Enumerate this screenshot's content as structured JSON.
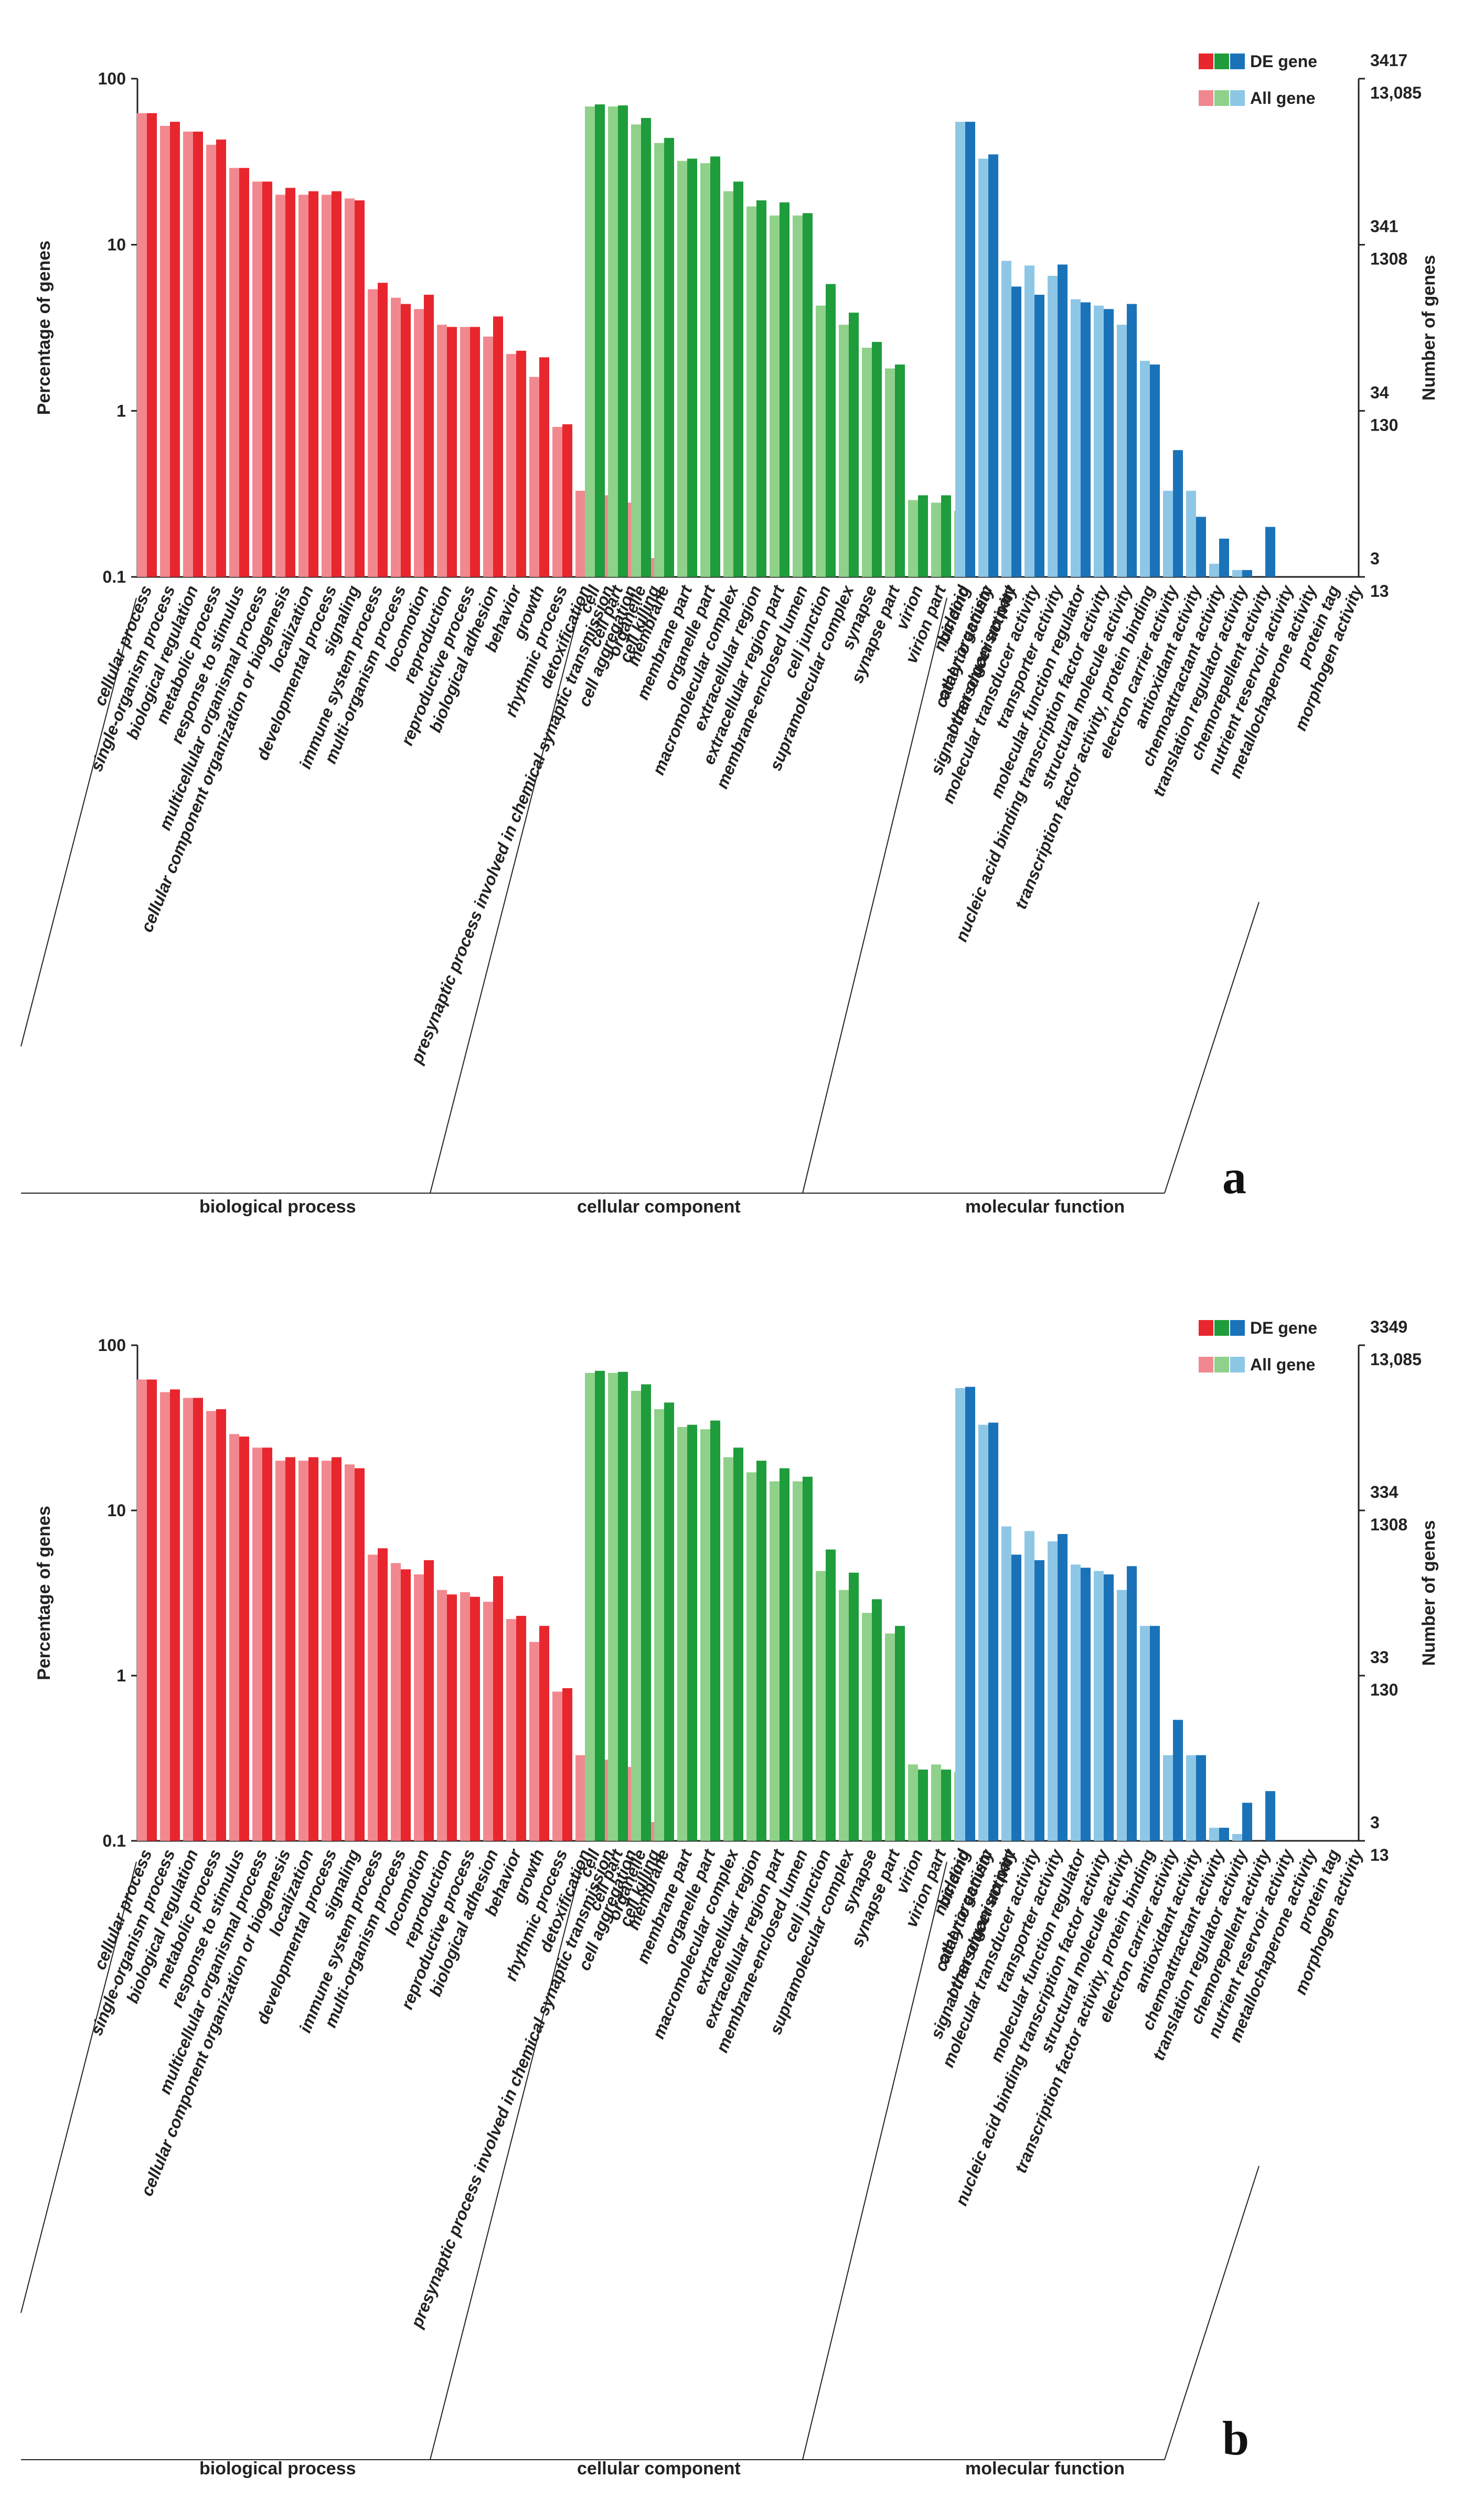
{
  "colors": {
    "bp_de": "#e8262d",
    "bp_all": "#f2888f",
    "cc_de": "#1f9c3c",
    "cc_all": "#8fd18a",
    "mf_de": "#1a73b8",
    "mf_all": "#8ec7e6"
  },
  "chart_data": [
    {
      "panel": "a",
      "type": "bar",
      "yscale": "log",
      "ylabel": "Percentage of genes",
      "y2label": "Number of genes",
      "yticks": [
        "100",
        "10",
        "1",
        "0.1"
      ],
      "ylim": [
        0.1,
        100
      ],
      "right_de_labels": [
        "3417",
        "341",
        "34",
        "3"
      ],
      "right_all_labels": [
        "13,085",
        "1308",
        "130",
        "13"
      ],
      "legend": [
        "DE gene",
        "All gene"
      ],
      "groups": [
        {
          "name": "biological process",
          "key": "bp",
          "categories": [
            "cellular process",
            "single-organism process",
            "biological regulation",
            "metabolic process",
            "response to stimulus",
            "multicellular organismal process",
            "cellular component organization or biogenesis",
            "localization",
            "developmental process",
            "signaling",
            "immune system process",
            "multi-organism process",
            "locomotion",
            "reproduction",
            "reproductive process",
            "biological adhesion",
            "behavior",
            "growth",
            "rhythmic process",
            "detoxification",
            "presynaptic process involved in chemical synaptic transmission",
            "cell aggregation",
            "cell killing"
          ],
          "series": [
            {
              "name": "All gene",
              "values": [
                62,
                52,
                48,
                40,
                29,
                24,
                20,
                20,
                20,
                19,
                5.4,
                4.8,
                4.1,
                3.3,
                3.2,
                2.8,
                2.2,
                1.6,
                0.8,
                0.33,
                0.31,
                0.28,
                0.13
              ]
            },
            {
              "name": "DE gene",
              "values": [
                62,
                55,
                48,
                43,
                29,
                24,
                22,
                21,
                21,
                18.5,
                5.9,
                4.4,
                5.0,
                3.2,
                3.2,
                3.7,
                2.3,
                2.1,
                0.83,
                0.23,
                0.22,
                0.23,
                0.14
              ]
            }
          ]
        },
        {
          "name": "cellular component",
          "key": "cc",
          "categories": [
            "cell",
            "cell part",
            "organelle",
            "membrane",
            "membrane part",
            "organelle part",
            "macromolecular complex",
            "extracellular region",
            "extracellular region part",
            "membrane-enclosed lumen",
            "cell junction",
            "supramolecular complex",
            "synapse",
            "synapse part",
            "virion",
            "virion part",
            "nucleoid",
            "other organism",
            "other organism part"
          ],
          "series": [
            {
              "name": "All gene",
              "values": [
                68,
                68,
                53,
                41,
                32,
                31,
                21,
                17,
                15,
                15,
                4.3,
                3.3,
                2.4,
                1.8,
                0.29,
                0.28,
                0.25,
                0,
                0
              ]
            },
            {
              "name": "DE gene",
              "values": [
                70,
                69,
                58,
                44,
                33,
                34,
                24,
                18.5,
                18,
                15.5,
                5.8,
                3.9,
                2.6,
                1.9,
                0.31,
                0.31,
                0.26,
                0,
                0
              ]
            }
          ]
        },
        {
          "name": "molecular function",
          "key": "mf",
          "categories": [
            "binding",
            "catalytic activity",
            "signal transducer activity",
            "molecular transducer activity",
            "transporter activity",
            "molecular function regulator",
            "nucleic acid binding transcription factor activity",
            "structural molecule activity",
            "transcription factor activity, protein binding",
            "electron carrier activity",
            "antioxidant activity",
            "chemoattractant activity",
            "translation regulator activity",
            "chemorepellent activity",
            "nutrient reservoir activity",
            "metallochaperone activity",
            "protein tag",
            "morphogen activity"
          ],
          "series": [
            {
              "name": "All gene",
              "values": [
                55,
                33,
                8.0,
                7.5,
                6.5,
                4.7,
                4.3,
                3.3,
                2.0,
                0.33,
                0.33,
                0.12,
                0.11,
                0,
                0,
                0,
                0,
                0
              ]
            },
            {
              "name": "DE gene",
              "values": [
                55,
                35,
                5.6,
                5.0,
                7.6,
                4.5,
                4.1,
                4.4,
                1.9,
                0.58,
                0.23,
                0.17,
                0.11,
                0.2,
                0,
                0,
                0,
                0
              ]
            }
          ]
        }
      ]
    },
    {
      "panel": "b",
      "type": "bar",
      "yscale": "log",
      "ylabel": "Percentage of genes",
      "y2label": "Number of genes",
      "yticks": [
        "100",
        "10",
        "1",
        "0.1"
      ],
      "ylim": [
        0.1,
        100
      ],
      "right_de_labels": [
        "3349",
        "334",
        "33",
        "3"
      ],
      "right_all_labels": [
        "13,085",
        "1308",
        "130",
        "13"
      ],
      "legend": [
        "DE gene",
        "All gene"
      ],
      "groups": [
        {
          "name": "biological process",
          "key": "bp",
          "categories": [
            "cellular process",
            "single-organism process",
            "biological regulation",
            "metabolic process",
            "response to stimulus",
            "multicellular organismal process",
            "cellular component organization or biogenesis",
            "localization",
            "developmental process",
            "signaling",
            "immune system process",
            "multi-organism process",
            "locomotion",
            "reproduction",
            "reproductive process",
            "biological adhesion",
            "behavior",
            "growth",
            "rhythmic process",
            "detoxification",
            "presynaptic process involved in chemical synaptic transmission",
            "cell aggregation",
            "cell killing"
          ],
          "series": [
            {
              "name": "All gene",
              "values": [
                62,
                52,
                48,
                40,
                29,
                24,
                20,
                20,
                20,
                19,
                5.4,
                4.8,
                4.1,
                3.3,
                3.2,
                2.8,
                2.2,
                1.6,
                0.8,
                0.33,
                0.31,
                0.28,
                0.13
              ]
            },
            {
              "name": "DE gene",
              "values": [
                62,
                54,
                48,
                41,
                28,
                24,
                21,
                21,
                21,
                18,
                5.9,
                4.4,
                5.0,
                3.1,
                3.0,
                4.0,
                2.3,
                2.0,
                0.84,
                0.33,
                0.33,
                0.21,
                0.18
              ]
            }
          ]
        },
        {
          "name": "cellular component",
          "key": "cc",
          "categories": [
            "cell",
            "cell part",
            "organelle",
            "membrane",
            "membrane part",
            "organelle part",
            "macromolecular complex",
            "extracellular region",
            "extracellular region part",
            "membrane-enclosed lumen",
            "cell junction",
            "supramolecular complex",
            "synapse",
            "synapse part",
            "virion",
            "virion part",
            "nucleoid",
            "other organism",
            "other organism part"
          ],
          "series": [
            {
              "name": "All gene",
              "values": [
                68,
                68,
                53,
                41,
                32,
                31,
                21,
                17,
                15,
                15,
                4.3,
                3.3,
                2.4,
                1.8,
                0.29,
                0.29,
                0.26,
                0,
                0
              ]
            },
            {
              "name": "DE gene",
              "values": [
                70,
                69,
                58,
                45,
                33,
                35,
                24,
                20,
                18,
                16,
                5.8,
                4.2,
                2.9,
                2.0,
                0.27,
                0.27,
                0.24,
                0,
                0
              ]
            }
          ]
        },
        {
          "name": "molecular function",
          "key": "mf",
          "categories": [
            "binding",
            "catalytic activity",
            "signal transducer activity",
            "molecular transducer activity",
            "transporter activity",
            "molecular function regulator",
            "nucleic acid binding transcription factor activity",
            "structural molecule activity",
            "transcription factor activity, protein binding",
            "electron carrier activity",
            "antioxidant activity",
            "chemoattractant activity",
            "translation regulator activity",
            "chemorepellent activity",
            "nutrient reservoir activity",
            "metallochaperone activity",
            "protein tag",
            "morphogen activity"
          ],
          "series": [
            {
              "name": "All gene",
              "values": [
                55,
                33,
                8.0,
                7.5,
                6.5,
                4.7,
                4.3,
                3.3,
                2.0,
                0.33,
                0.33,
                0.12,
                0.11,
                0,
                0,
                0,
                0,
                0
              ]
            },
            {
              "name": "DE gene",
              "values": [
                56,
                34,
                5.4,
                5.0,
                7.2,
                4.5,
                4.1,
                4.6,
                2.0,
                0.54,
                0.33,
                0.12,
                0.17,
                0.2,
                0,
                0,
                0,
                0
              ]
            }
          ]
        }
      ]
    }
  ]
}
